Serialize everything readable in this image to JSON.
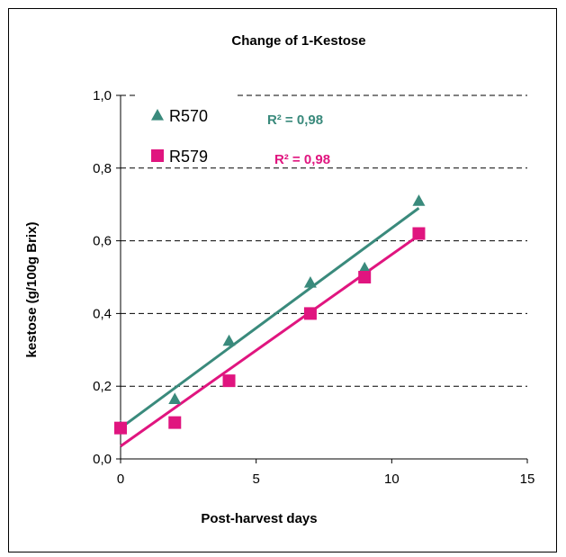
{
  "chart_data": {
    "type": "scatter",
    "title": "Change of 1-Kestose",
    "xlabel": "Post-harvest days",
    "ylabel": "kestose (g/100g Brix)",
    "xlim": [
      0,
      15
    ],
    "ylim": [
      0,
      1.0
    ],
    "xticks": [
      0,
      5,
      10,
      15
    ],
    "xtick_labels": [
      "0",
      "5",
      "10",
      "15"
    ],
    "yticks": [
      0,
      0.2,
      0.4,
      0.6,
      0.8,
      1.0
    ],
    "ytick_labels": [
      "0,0",
      "0,2",
      "0,4",
      "0,6",
      "0,8",
      "1,0"
    ],
    "grid": "horizontal-dashed",
    "legend_position": "top-left",
    "series": [
      {
        "name": "R570",
        "marker": "triangle",
        "color": "#3a8a7c",
        "x": [
          0,
          2,
          4,
          7,
          9,
          11
        ],
        "y": [
          0.09,
          0.165,
          0.325,
          0.485,
          0.525,
          0.71
        ],
        "trendline": {
          "x0": 0,
          "y0": 0.085,
          "x1": 11,
          "y1": 0.69
        },
        "r2_label": "R² = 0,98"
      },
      {
        "name": "R579",
        "marker": "square",
        "color": "#e0157f",
        "x": [
          0,
          2,
          4,
          7,
          9,
          11
        ],
        "y": [
          0.085,
          0.1,
          0.215,
          0.4,
          0.5,
          0.62
        ],
        "trendline": {
          "x0": 0,
          "y0": 0.035,
          "x1": 11,
          "y1": 0.615
        },
        "r2_label": "R² = 0,98"
      }
    ]
  }
}
